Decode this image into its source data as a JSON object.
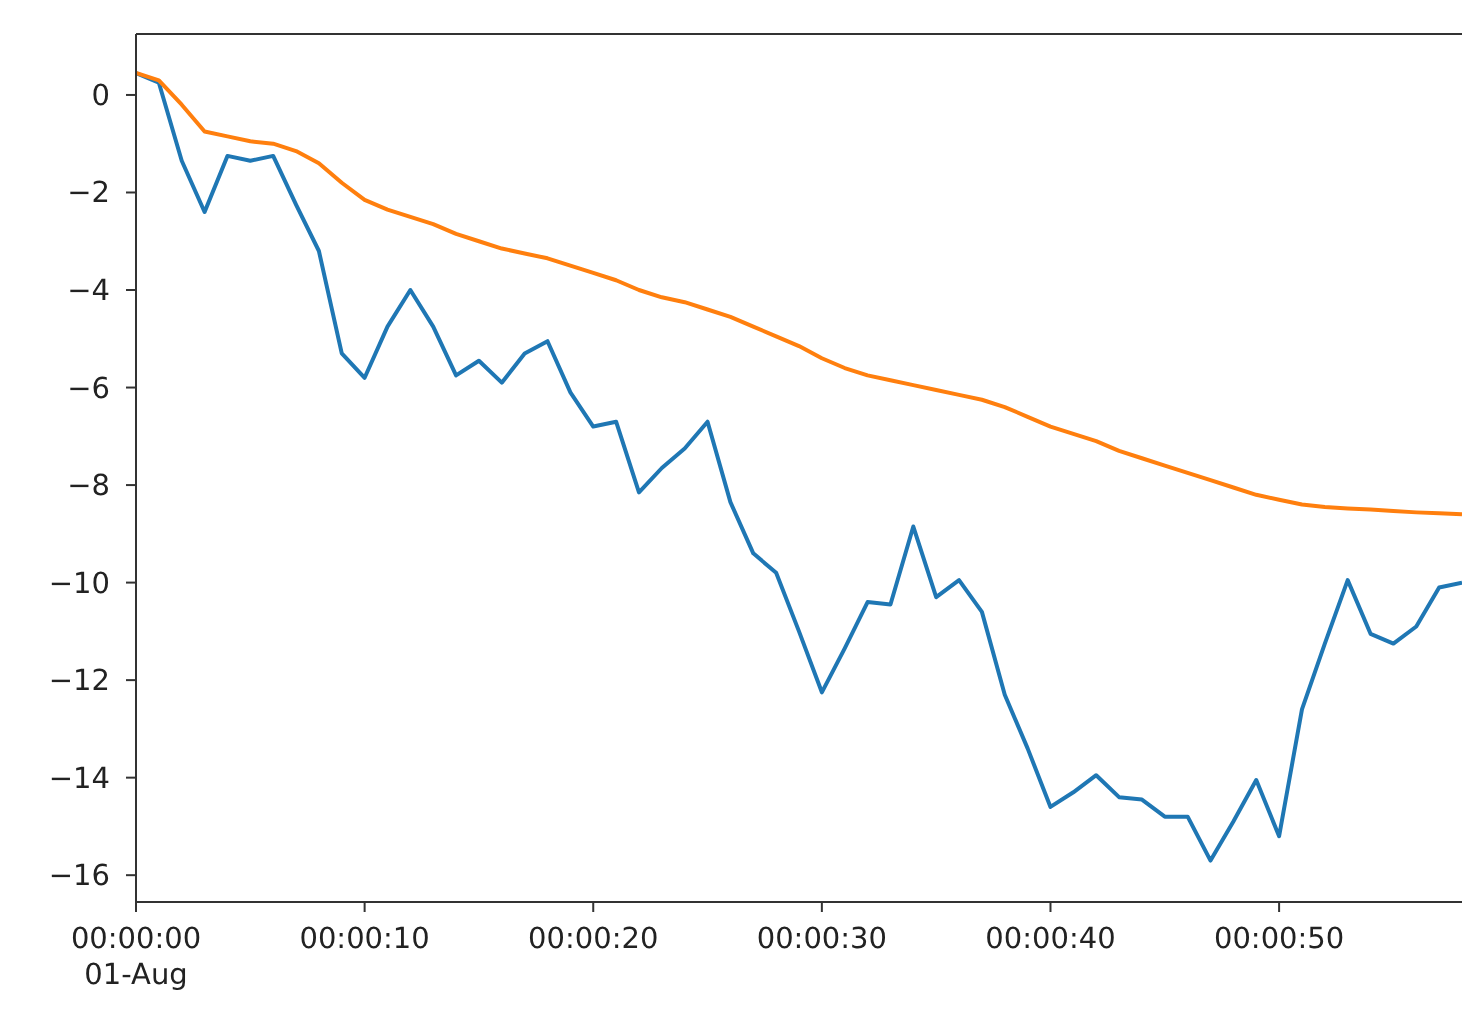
{
  "chart_data": {
    "type": "line",
    "x": [
      0,
      1,
      2,
      3,
      4,
      5,
      6,
      7,
      8,
      9,
      10,
      11,
      12,
      13,
      14,
      15,
      16,
      17,
      18,
      19,
      20,
      21,
      22,
      23,
      24,
      25,
      26,
      27,
      28,
      29,
      30,
      31,
      32,
      33,
      34,
      35,
      36,
      37,
      38,
      39,
      40,
      41,
      42,
      43,
      44,
      45,
      46,
      47,
      48,
      49,
      50,
      51,
      52,
      53,
      54,
      55,
      56,
      57,
      58
    ],
    "series": [
      {
        "color": "#1f77b4",
        "values": [
          0.45,
          0.25,
          -1.35,
          -2.4,
          -1.25,
          -1.35,
          -1.25,
          -2.25,
          -3.2,
          -5.3,
          -5.8,
          -4.75,
          -4.0,
          -4.75,
          -5.75,
          -5.45,
          -5.9,
          -5.3,
          -5.05,
          -6.1,
          -6.8,
          -6.7,
          -8.15,
          -7.65,
          -7.25,
          -6.7,
          -8.35,
          -9.4,
          -9.8,
          -11.0,
          -12.25,
          -11.35,
          -10.4,
          -10.45,
          -8.85,
          -10.3,
          -9.95,
          -10.6,
          -12.3,
          -13.4,
          -14.6,
          -14.3,
          -13.95,
          -14.4,
          -14.45,
          -14.8,
          -14.8,
          -15.7,
          -14.9,
          -14.05,
          -15.2,
          -12.6,
          -11.25,
          -9.95,
          -11.05,
          -11.25,
          -10.9,
          -10.1,
          -10.0
        ]
      },
      {
        "color": "#ff7f0e",
        "values": [
          0.45,
          0.3,
          -0.2,
          -0.75,
          -0.85,
          -0.95,
          -1.0,
          -1.15,
          -1.4,
          -1.8,
          -2.15,
          -2.35,
          -2.5,
          -2.65,
          -2.85,
          -3.0,
          -3.15,
          -3.25,
          -3.35,
          -3.5,
          -3.65,
          -3.8,
          -4.0,
          -4.15,
          -4.25,
          -4.4,
          -4.55,
          -4.75,
          -4.95,
          -5.15,
          -5.4,
          -5.6,
          -5.75,
          -5.85,
          -5.95,
          -6.05,
          -6.15,
          -6.25,
          -6.4,
          -6.6,
          -6.8,
          -6.95,
          -7.1,
          -7.3,
          -7.45,
          -7.6,
          -7.75,
          -7.9,
          -8.05,
          -8.2,
          -8.3,
          -8.4,
          -8.45,
          -8.48,
          -8.5,
          -8.53,
          -8.56,
          -8.58,
          -8.6
        ]
      }
    ],
    "xlim": [
      0,
      58
    ],
    "xticks": [
      {
        "value": 0,
        "label": "00:00:00\n01-Aug"
      },
      {
        "value": 10,
        "label": "00:00:10"
      },
      {
        "value": 20,
        "label": "00:00:20"
      },
      {
        "value": 30,
        "label": "00:00:30"
      },
      {
        "value": 40,
        "label": "00:00:40"
      },
      {
        "value": 50,
        "label": "00:00:50"
      }
    ],
    "ylim": [
      -16.55,
      1.25
    ],
    "yticks": [
      {
        "value": 0,
        "label": "0"
      },
      {
        "value": -2,
        "label": "−2"
      },
      {
        "value": -4,
        "label": "−4"
      },
      {
        "value": -6,
        "label": "−6"
      },
      {
        "value": -8,
        "label": "−8"
      },
      {
        "value": -10,
        "label": "−10"
      },
      {
        "value": -12,
        "label": "−12"
      },
      {
        "value": -14,
        "label": "−14"
      },
      {
        "value": -16,
        "label": "−16"
      }
    ],
    "grid": false,
    "marker": "none",
    "line_style": "solid"
  }
}
